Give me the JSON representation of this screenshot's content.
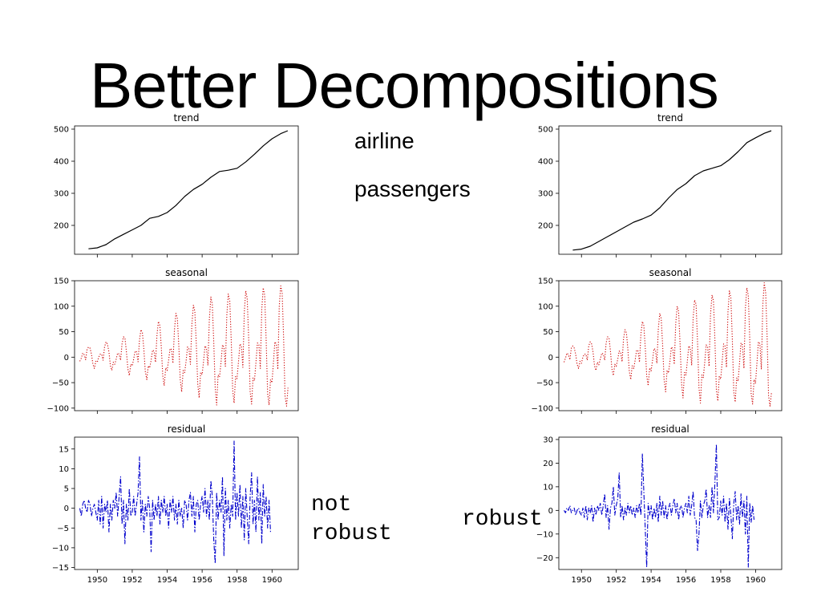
{
  "slide": {
    "title": "Better Decompositions",
    "series_label_line1": "airline",
    "series_label_line2": "passengers",
    "left_caption_line1": "not",
    "left_caption_line2": "robust",
    "right_caption": "robust"
  },
  "colors": {
    "trend": "#000000",
    "seasonal": "#cc0000",
    "residual": "#0000cc"
  },
  "chart_data": [
    {
      "type": "line",
      "variant": "not-robust",
      "panel": "trend",
      "title": "trend",
      "line_style": "solid",
      "grid": false,
      "x": [
        1949.5,
        1950,
        1950.5,
        1951,
        1951.5,
        1952,
        1952.5,
        1953,
        1953.5,
        1954,
        1954.5,
        1955,
        1955.5,
        1956,
        1956.5,
        1957,
        1957.5,
        1958,
        1958.5,
        1959,
        1959.5,
        1960,
        1960.5,
        1960.9
      ],
      "y": [
        127,
        130,
        140,
        158,
        172,
        186,
        200,
        222,
        228,
        240,
        262,
        290,
        312,
        328,
        350,
        368,
        372,
        378,
        398,
        422,
        448,
        470,
        486,
        495
      ],
      "yticks": [
        200,
        300,
        400,
        500
      ],
      "ylim": [
        110,
        510
      ],
      "xticks": [
        1950,
        1952,
        1954,
        1956,
        1958,
        1960
      ],
      "xlim": [
        1948.7,
        1961.5
      ],
      "show_xticks": false
    },
    {
      "type": "line",
      "variant": "robust",
      "panel": "trend",
      "title": "trend",
      "line_style": "solid",
      "grid": false,
      "x": [
        1949.5,
        1950,
        1950.5,
        1951,
        1951.5,
        1952,
        1952.5,
        1953,
        1953.5,
        1954,
        1954.5,
        1955,
        1955.5,
        1956,
        1956.5,
        1957,
        1957.5,
        1958,
        1958.5,
        1959,
        1959.5,
        1960,
        1960.5,
        1960.9
      ],
      "y": [
        123,
        126,
        135,
        150,
        165,
        180,
        195,
        210,
        220,
        232,
        255,
        285,
        312,
        330,
        355,
        370,
        378,
        386,
        405,
        430,
        458,
        473,
        487,
        495
      ],
      "yticks": [
        200,
        300,
        400,
        500
      ],
      "ylim": [
        110,
        510
      ],
      "xticks": [
        1950,
        1952,
        1954,
        1956,
        1958,
        1960
      ],
      "xlim": [
        1948.7,
        1961.5
      ],
      "show_xticks": false
    },
    {
      "type": "line",
      "variant": "not-robust",
      "panel": "seasonal",
      "title": "seasonal",
      "line_style": "dotted",
      "grid": false,
      "x_start": 1949.0,
      "x_step": 0.0833,
      "y": [
        -8,
        -2,
        8,
        5,
        -5,
        15,
        20,
        18,
        6,
        -14,
        -22,
        -8,
        -10,
        0,
        6,
        6,
        -6,
        20,
        30,
        26,
        10,
        -17,
        -26,
        -10,
        -14,
        -4,
        8,
        6,
        -6,
        26,
        40,
        38,
        12,
        -23,
        -36,
        -14,
        -17,
        -4,
        12,
        10,
        -9,
        34,
        54,
        48,
        16,
        -28,
        -44,
        -17,
        -21,
        -6,
        14,
        12,
        -10,
        44,
        70,
        62,
        19,
        -36,
        -56,
        -21,
        -26,
        -6,
        17,
        15,
        -12,
        54,
        86,
        76,
        23,
        -44,
        -68,
        -26,
        -30,
        -8,
        20,
        16,
        -14,
        64,
        102,
        90,
        27,
        -52,
        -80,
        -30,
        -34,
        -8,
        22,
        18,
        -16,
        74,
        118,
        104,
        30,
        -60,
        -94,
        -35,
        -39,
        -10,
        24,
        20,
        -18,
        82,
        124,
        110,
        33,
        -64,
        -90,
        -38,
        -42,
        -10,
        26,
        22,
        -20,
        88,
        130,
        116,
        35,
        -68,
        -92,
        -41,
        -46,
        -11,
        28,
        24,
        -22,
        94,
        136,
        122,
        37,
        -72,
        -94,
        -44,
        -50,
        -12,
        30,
        26,
        -24,
        100,
        140,
        126,
        40,
        -76,
        -96,
        -60
      ],
      "yticks": [
        -100,
        -50,
        0,
        50,
        100,
        150
      ],
      "ylim": [
        -105,
        150
      ],
      "xticks": [
        1950,
        1952,
        1954,
        1956,
        1958,
        1960
      ],
      "xlim": [
        1948.7,
        1961.5
      ],
      "show_xticks": false
    },
    {
      "type": "line",
      "variant": "robust",
      "panel": "seasonal",
      "title": "seasonal",
      "line_style": "dotted",
      "grid": false,
      "x_start": 1949.0,
      "x_step": 0.0833,
      "y": [
        -10,
        -2,
        8,
        5,
        -5,
        18,
        22,
        18,
        6,
        -14,
        -22,
        -8,
        -12,
        0,
        6,
        6,
        -6,
        22,
        30,
        26,
        10,
        -17,
        -26,
        -10,
        -15,
        -4,
        8,
        6,
        -6,
        28,
        40,
        38,
        12,
        -23,
        -36,
        -14,
        -18,
        -4,
        12,
        10,
        -9,
        36,
        54,
        48,
        16,
        -28,
        -44,
        -17,
        -22,
        -6,
        14,
        12,
        -10,
        46,
        70,
        62,
        19,
        -36,
        -56,
        -21,
        -27,
        -6,
        17,
        15,
        -12,
        56,
        86,
        76,
        23,
        -44,
        -68,
        -26,
        -31,
        -8,
        20,
        16,
        -14,
        66,
        100,
        90,
        27,
        -52,
        -80,
        -30,
        -35,
        -8,
        22,
        18,
        -16,
        76,
        112,
        104,
        30,
        -60,
        -90,
        -35,
        -40,
        -10,
        24,
        20,
        -18,
        84,
        122,
        110,
        33,
        -64,
        -86,
        -38,
        -43,
        -10,
        26,
        22,
        -20,
        90,
        130,
        116,
        35,
        -68,
        -88,
        -41,
        -47,
        -11,
        28,
        24,
        -22,
        96,
        136,
        122,
        37,
        -72,
        -92,
        -44,
        -51,
        -12,
        30,
        26,
        -24,
        102,
        146,
        126,
        40,
        -76,
        -96,
        -70
      ],
      "yticks": [
        -100,
        -50,
        0,
        50,
        100,
        150
      ],
      "ylim": [
        -105,
        150
      ],
      "xticks": [
        1950,
        1952,
        1954,
        1956,
        1958,
        1960
      ],
      "xlim": [
        1948.7,
        1961.5
      ],
      "show_xticks": false
    },
    {
      "type": "line",
      "variant": "not-robust",
      "panel": "residual",
      "title": "residual",
      "line_style": "dashdot",
      "grid": false,
      "x_start": 1949.0,
      "x_step": 0.0833,
      "y": [
        0,
        -2,
        1,
        2,
        0,
        -1,
        2,
        1,
        -2,
        0,
        1,
        -1,
        -3,
        2,
        -4,
        3,
        -5,
        1,
        -1,
        2,
        -6,
        1,
        -3,
        2,
        0,
        4,
        -2,
        3,
        8,
        -4,
        2,
        -9,
        1,
        -3,
        5,
        -2,
        -1,
        3,
        -2,
        1,
        4,
        13,
        -3,
        2,
        -6,
        1,
        -2,
        3,
        0,
        -11,
        2,
        -3,
        1,
        -2,
        3,
        -4,
        2,
        -1,
        3,
        -2,
        1,
        -5,
        2,
        -1,
        3,
        -3,
        1,
        -4,
        2,
        -2,
        0,
        -5,
        2,
        1,
        -3,
        2,
        4,
        -2,
        3,
        -6,
        1,
        2,
        -3,
        1,
        3,
        -1,
        5,
        -2,
        2,
        -3,
        7,
        3,
        -8,
        -14,
        4,
        -3,
        2,
        -1,
        8,
        -12,
        5,
        -3,
        2,
        -5,
        1,
        -2,
        17,
        -3,
        4,
        -2,
        6,
        -5,
        3,
        -8,
        5,
        -2,
        -9,
        3,
        9,
        -4,
        2,
        -6,
        8,
        -3,
        4,
        -9,
        6,
        -2,
        3,
        -5,
        2,
        -6
      ],
      "yticks": [
        -15,
        -10,
        -5,
        0,
        5,
        10,
        15
      ],
      "ylim": [
        -15.5,
        18
      ],
      "xticks": [
        1950,
        1952,
        1954,
        1956,
        1958,
        1960
      ],
      "xlim": [
        1948.7,
        1961.5
      ],
      "show_xticks": true
    },
    {
      "type": "line",
      "variant": "robust",
      "panel": "residual",
      "title": "residual",
      "line_style": "dashdot",
      "grid": false,
      "x_start": 1949.0,
      "x_step": 0.0833,
      "y": [
        0,
        -1,
        1,
        0,
        2,
        -1,
        0,
        1,
        -2,
        0,
        1,
        -1,
        -2,
        1,
        -3,
        2,
        -4,
        1,
        -1,
        2,
        -5,
        1,
        -2,
        2,
        0,
        3,
        -2,
        2,
        7,
        -3,
        2,
        -8,
        1,
        3,
        10,
        -2,
        2,
        5,
        16,
        -3,
        2,
        -4,
        1,
        -2,
        3,
        -1,
        2,
        -2,
        1,
        -3,
        2,
        -1,
        3,
        -2,
        24,
        8,
        -8,
        -24,
        3,
        -2,
        2,
        -4,
        1,
        -3,
        3,
        -5,
        6,
        -2,
        4,
        -3,
        2,
        -4,
        1,
        3,
        -2,
        2,
        5,
        -1,
        3,
        -4,
        1,
        2,
        -3,
        1,
        3,
        -1,
        6,
        -2,
        2,
        8,
        -3,
        -4,
        -17,
        -10,
        4,
        -3,
        2,
        4,
        9,
        -3,
        2,
        -3,
        10,
        -1,
        12,
        28,
        -4,
        -3,
        4,
        -2,
        6,
        -5,
        3,
        -8,
        5,
        -2,
        -12,
        3,
        8,
        -4,
        2,
        -6,
        7,
        -3,
        4,
        -10,
        6,
        -24,
        3,
        -5,
        2,
        -4
      ],
      "yticks": [
        -20,
        -10,
        0,
        10,
        20,
        30
      ],
      "ylim": [
        -25,
        31
      ],
      "xticks": [
        1950,
        1952,
        1954,
        1956,
        1958,
        1960
      ],
      "xlim": [
        1948.7,
        1961.5
      ],
      "show_xticks": true
    }
  ]
}
